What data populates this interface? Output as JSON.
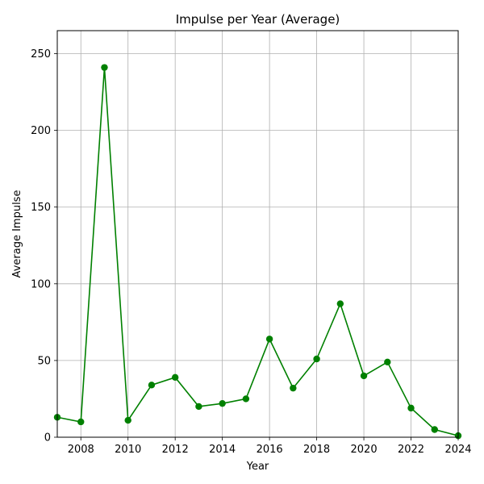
{
  "chart_data": {
    "type": "line",
    "title": "Impulse per Year (Average)",
    "xlabel": "Year",
    "ylabel": "Average Impulse",
    "xlim": [
      2007,
      2024
    ],
    "ylim": [
      0,
      265
    ],
    "xticks": [
      2008,
      2010,
      2012,
      2014,
      2016,
      2018,
      2020,
      2022,
      2024
    ],
    "yticks": [
      0,
      50,
      100,
      150,
      200,
      250
    ],
    "grid": true,
    "series": [
      {
        "color": "#008000",
        "marker": "circle",
        "x": [
          2007,
          2008,
          2009,
          2010,
          2011,
          2012,
          2013,
          2014,
          2015,
          2016,
          2017,
          2018,
          2019,
          2020,
          2021,
          2022,
          2023,
          2024
        ],
        "y": [
          13,
          10,
          241,
          11,
          34,
          39,
          20,
          22,
          25,
          64,
          32,
          51,
          87,
          40,
          49,
          19,
          5,
          1
        ]
      }
    ]
  }
}
